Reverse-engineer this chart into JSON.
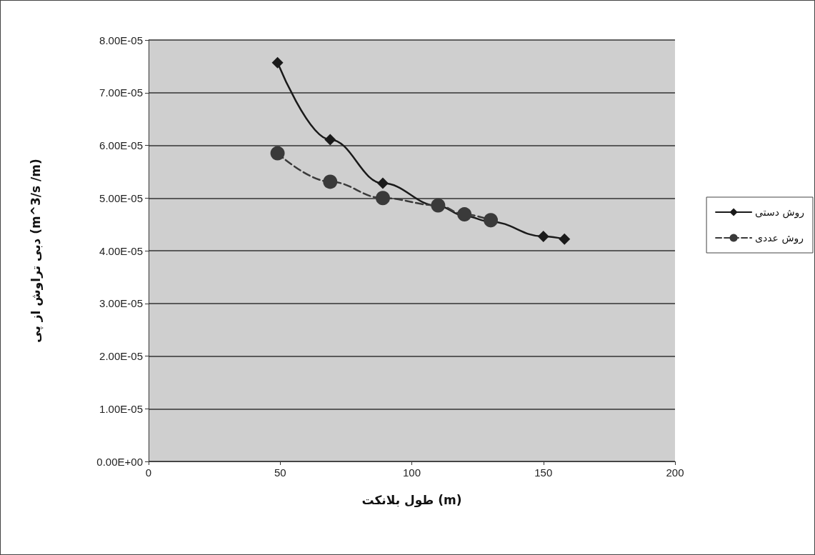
{
  "chart_data": {
    "type": "line",
    "xlabel": "طول بلانکت (m)",
    "ylabel": "دبی تراوش از پی (m^3/s /m)",
    "xlim": [
      0,
      200
    ],
    "xticks": [
      0,
      50,
      100,
      150,
      200
    ],
    "ylim": [
      0,
      8e-05
    ],
    "yticks": [
      {
        "value": 0,
        "label": "0.00E+00"
      },
      {
        "value": 1e-05,
        "label": "1.00E-05"
      },
      {
        "value": 2e-05,
        "label": "2.00E-05"
      },
      {
        "value": 3e-05,
        "label": "3.00E-05"
      },
      {
        "value": 4e-05,
        "label": "4.00E-05"
      },
      {
        "value": 5e-05,
        "label": "5.00E-05"
      },
      {
        "value": 6e-05,
        "label": "6.00E-05"
      },
      {
        "value": 7e-05,
        "label": "7.00E-05"
      },
      {
        "value": 8e-05,
        "label": "8.00E-05"
      }
    ],
    "grid": "y",
    "legend": "right",
    "series": [
      {
        "name": "روش دستی",
        "color": "#1a1a1a",
        "marker": "diamond",
        "line_style": "solid",
        "x": [
          49,
          69,
          89,
          110,
          120,
          130,
          150,
          158
        ],
        "values": [
          7.57e-05,
          6.11e-05,
          5.28e-05,
          4.85e-05,
          4.66e-05,
          4.55e-05,
          4.27e-05,
          4.22e-05
        ]
      },
      {
        "name": "روش عددی",
        "color": "#3a3a3a",
        "marker": "circle",
        "line_style": "dashed",
        "x": [
          49,
          69,
          89,
          110,
          120,
          130
        ],
        "values": [
          5.85e-05,
          5.31e-05,
          5e-05,
          4.86e-05,
          4.69e-05,
          4.58e-05
        ]
      }
    ]
  }
}
